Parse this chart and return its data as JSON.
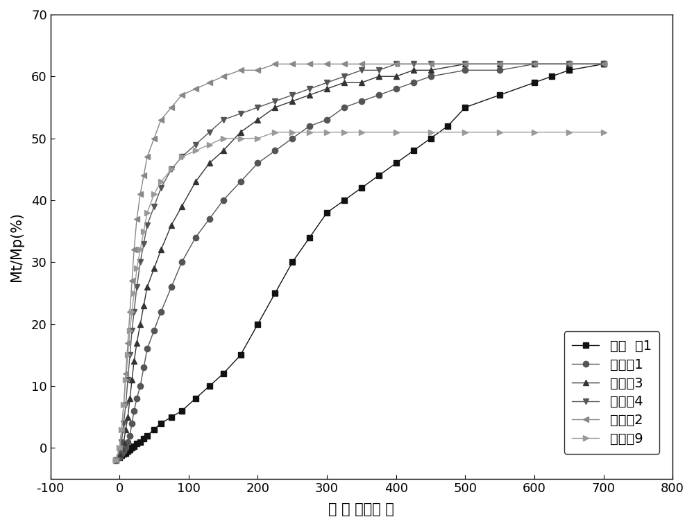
{
  "title": "",
  "xlabel": "时 间 （小时 ）",
  "ylabel": "Mt/Mp(%)",
  "xlim": [
    -100,
    800
  ],
  "ylim": [
    -5,
    70
  ],
  "xticks": [
    -100,
    0,
    100,
    200,
    300,
    400,
    500,
    600,
    700,
    800
  ],
  "yticks": [
    0,
    10,
    20,
    30,
    40,
    50,
    60,
    70
  ],
  "background_color": "#ffffff",
  "series": [
    {
      "label": "对比  例1",
      "color": "#111111",
      "marker": "s",
      "markersize": 6,
      "linewidth": 1.0,
      "x": [
        -5,
        0,
        3,
        6,
        9,
        12,
        15,
        18,
        21,
        25,
        30,
        35,
        40,
        50,
        60,
        75,
        90,
        110,
        130,
        150,
        175,
        200,
        225,
        250,
        275,
        300,
        325,
        350,
        375,
        400,
        425,
        450,
        475,
        500,
        550,
        600,
        625,
        650,
        700
      ],
      "y": [
        -2,
        -1.5,
        -1.2,
        -1,
        -0.8,
        -0.5,
        -0.3,
        0,
        0.3,
        0.7,
        1,
        1.5,
        2,
        3,
        4,
        5,
        6,
        8,
        10,
        12,
        15,
        20,
        25,
        30,
        34,
        38,
        40,
        42,
        44,
        46,
        48,
        50,
        52,
        55,
        57,
        59,
        60,
        61,
        62
      ]
    },
    {
      "label": "实施例1",
      "color": "#555555",
      "marker": "o",
      "markersize": 6,
      "linewidth": 1.0,
      "x": [
        -5,
        0,
        3,
        6,
        9,
        12,
        15,
        18,
        21,
        25,
        30,
        35,
        40,
        50,
        60,
        75,
        90,
        110,
        130,
        150,
        175,
        200,
        225,
        250,
        275,
        300,
        325,
        350,
        375,
        400,
        425,
        450,
        500,
        550,
        600,
        650,
        700
      ],
      "y": [
        -2,
        -1.5,
        -1,
        -0.5,
        0,
        1,
        2,
        4,
        6,
        8,
        10,
        13,
        16,
        19,
        22,
        26,
        30,
        34,
        37,
        40,
        43,
        46,
        48,
        50,
        52,
        53,
        55,
        56,
        57,
        58,
        59,
        60,
        61,
        61,
        62,
        62,
        62
      ]
    },
    {
      "label": "实施例3",
      "color": "#333333",
      "marker": "^",
      "markersize": 6,
      "linewidth": 1.0,
      "x": [
        -5,
        0,
        3,
        6,
        9,
        12,
        15,
        18,
        21,
        25,
        30,
        35,
        40,
        50,
        60,
        75,
        90,
        110,
        130,
        150,
        175,
        200,
        225,
        250,
        275,
        300,
        325,
        350,
        375,
        400,
        425,
        450,
        500,
        550,
        600,
        650,
        700
      ],
      "y": [
        -2,
        -1,
        0,
        1,
        3,
        5,
        8,
        11,
        14,
        17,
        20,
        23,
        26,
        29,
        32,
        36,
        39,
        43,
        46,
        48,
        51,
        53,
        55,
        56,
        57,
        58,
        59,
        59,
        60,
        60,
        61,
        61,
        62,
        62,
        62,
        62,
        62
      ]
    },
    {
      "label": "实施例4",
      "color": "#555555",
      "marker": "v",
      "markersize": 6,
      "linewidth": 1.0,
      "x": [
        -5,
        0,
        3,
        6,
        9,
        12,
        15,
        18,
        21,
        25,
        30,
        35,
        40,
        50,
        60,
        75,
        90,
        110,
        130,
        150,
        175,
        200,
        225,
        250,
        275,
        300,
        325,
        350,
        375,
        400,
        425,
        450,
        500,
        550,
        600,
        650,
        700
      ],
      "y": [
        -2,
        -0.5,
        1,
        4,
        7,
        11,
        15,
        19,
        22,
        26,
        30,
        33,
        36,
        39,
        42,
        45,
        47,
        49,
        51,
        53,
        54,
        55,
        56,
        57,
        58,
        59,
        60,
        61,
        61,
        62,
        62,
        62,
        62,
        62,
        62,
        62,
        62
      ]
    },
    {
      "label": "实施例2",
      "color": "#888888",
      "marker": "<",
      "markersize": 6,
      "linewidth": 1.0,
      "x": [
        -5,
        0,
        3,
        6,
        9,
        12,
        15,
        18,
        21,
        25,
        30,
        35,
        40,
        50,
        60,
        75,
        90,
        110,
        130,
        150,
        175,
        200,
        225,
        250,
        275,
        300,
        325,
        350,
        400,
        450,
        500,
        550,
        600,
        650,
        700
      ],
      "y": [
        -2,
        0,
        3,
        7,
        12,
        17,
        22,
        27,
        32,
        37,
        41,
        44,
        47,
        50,
        53,
        55,
        57,
        58,
        59,
        60,
        61,
        61,
        62,
        62,
        62,
        62,
        62,
        62,
        62,
        62,
        62,
        62,
        62,
        62,
        62
      ]
    },
    {
      "label": "实施例9",
      "color": "#999999",
      "marker": ">",
      "markersize": 6,
      "linewidth": 1.0,
      "x": [
        -5,
        0,
        3,
        6,
        9,
        12,
        15,
        18,
        21,
        25,
        30,
        35,
        40,
        50,
        60,
        75,
        90,
        110,
        130,
        150,
        175,
        200,
        225,
        250,
        275,
        300,
        325,
        350,
        400,
        450,
        500,
        550,
        600,
        650,
        700
      ],
      "y": [
        -2,
        0,
        3,
        7,
        11,
        15,
        19,
        22,
        25,
        29,
        32,
        35,
        38,
        41,
        43,
        45,
        47,
        48,
        49,
        50,
        50,
        50,
        51,
        51,
        51,
        51,
        51,
        51,
        51,
        51,
        51,
        51,
        51,
        51,
        51
      ]
    }
  ],
  "font_size": 14,
  "tick_fontsize": 13,
  "label_fontsize": 15
}
